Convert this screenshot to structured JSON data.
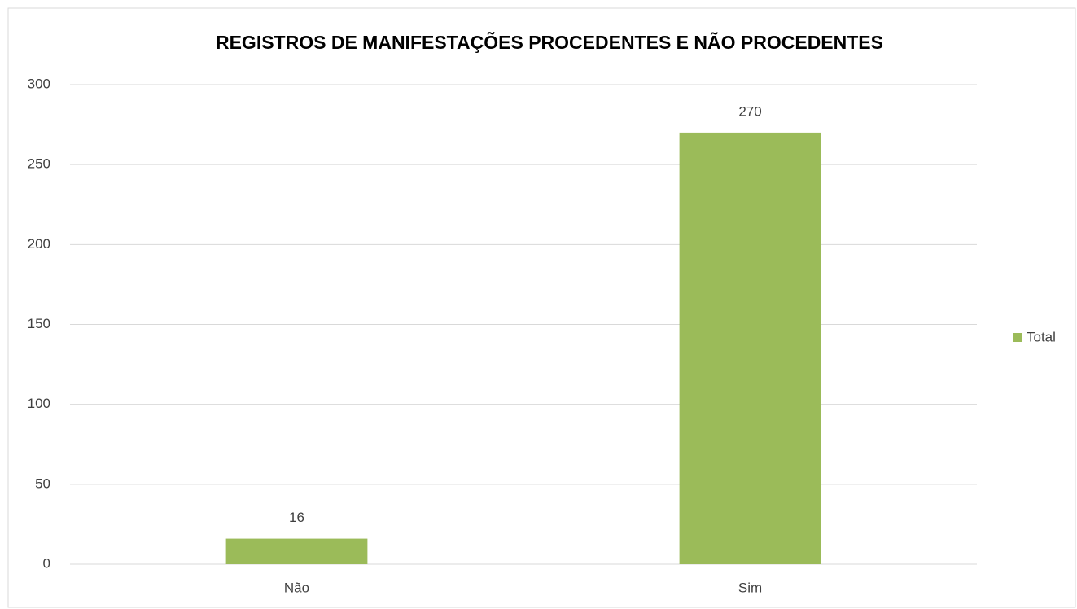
{
  "chart_data": {
    "type": "bar",
    "title": "REGISTROS DE MANIFESTAÇÕES PROCEDENTES E NÃO PROCEDENTES",
    "categories": [
      "Não",
      "Sim"
    ],
    "series": [
      {
        "name": "Total",
        "color": "#9bbb59",
        "values": [
          16,
          270
        ]
      }
    ],
    "ylim": [
      0,
      300
    ],
    "yticks": [
      0,
      50,
      100,
      150,
      200,
      250,
      300
    ],
    "grid": true,
    "legend": "right"
  }
}
